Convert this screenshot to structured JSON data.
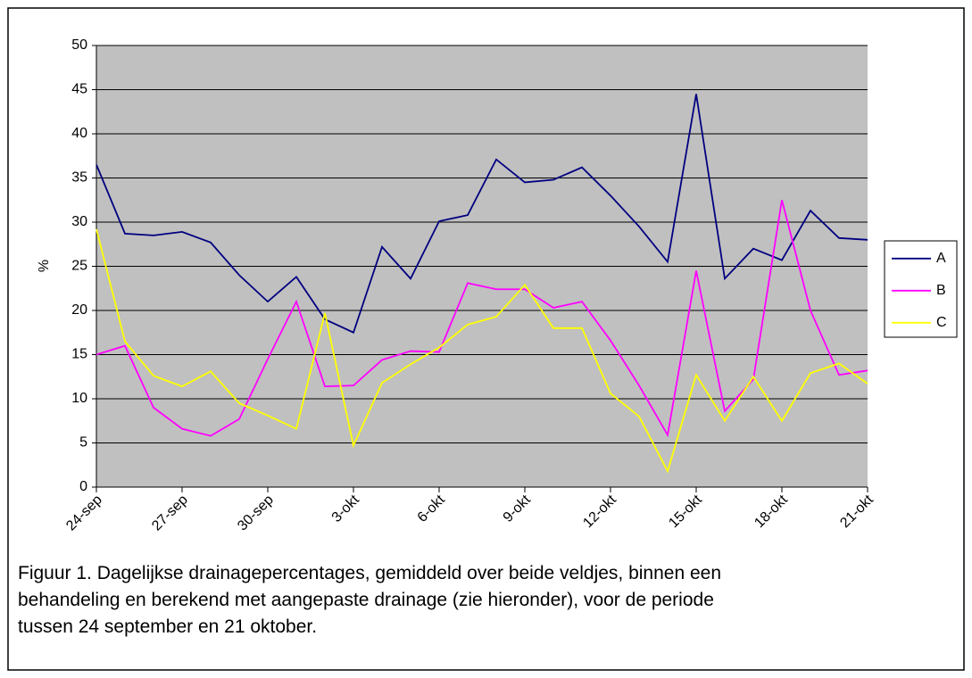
{
  "chart_data": {
    "type": "line",
    "categories": [
      "24-sep",
      null,
      null,
      "27-sep",
      null,
      null,
      "30-sep",
      null,
      null,
      "3-okt",
      null,
      null,
      "6-okt",
      null,
      null,
      "9-okt",
      null,
      null,
      "12-okt",
      null,
      null,
      "15-okt",
      null,
      null,
      "18-okt",
      null,
      null,
      "21-okt"
    ],
    "series": [
      {
        "name": "A",
        "color": "#000080",
        "values": [
          36.5,
          28.7,
          28.5,
          28.9,
          27.7,
          24,
          21,
          23.8,
          19,
          17.5,
          27.2,
          23.6,
          30.1,
          30.8,
          37.1,
          34.5,
          34.8,
          36.2,
          33,
          29.5,
          25.5,
          44.5,
          23.6,
          27,
          25.7,
          31.3,
          28.2,
          28
        ]
      },
      {
        "name": "B",
        "color": "#ff00ff",
        "values": [
          15,
          16,
          9,
          6.6,
          5.8,
          7.7,
          14.5,
          21,
          11.4,
          11.5,
          14.4,
          15.4,
          15.3,
          23.1,
          22.4,
          22.4,
          20.3,
          21,
          16.6,
          11.5,
          5.9,
          24.5,
          8.6,
          12.2,
          32.5,
          20,
          12.7,
          13.2
        ]
      },
      {
        "name": "C",
        "color": "#ffff00",
        "values": [
          29.2,
          16.5,
          12.6,
          11.4,
          13.1,
          9.5,
          8.1,
          6.6,
          19.7,
          4.7,
          11.8,
          13.9,
          15.8,
          18.4,
          19.3,
          22.9,
          18,
          18,
          10.6,
          8,
          1.8,
          12.7,
          7.5,
          12.5,
          7.5,
          12.9,
          14,
          11.7
        ]
      }
    ],
    "y_label": "%",
    "ylim": [
      0,
      50
    ],
    "yticks": [
      0,
      5,
      10,
      15,
      20,
      25,
      30,
      35,
      40,
      45,
      50
    ],
    "grid": true,
    "legend": "right",
    "caption": "Figuur 1. Dagelijkse drainagepercentages, gemiddeld over beide veldjes, binnen een behandeling en berekend met aangepaste drainage (zie hieronder), voor de periode tussen 24 september en 21 oktober."
  }
}
